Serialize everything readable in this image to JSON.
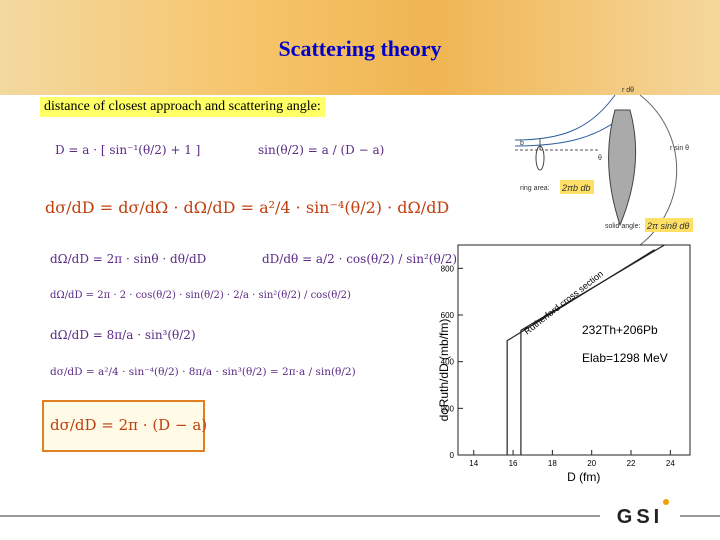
{
  "title": "Scattering theory",
  "subtitle": "distance of closest approach and scattering angle:",
  "formulas": [
    "D = a · [ sin⁻¹(θ/2) + 1 ]",
    "sin(θ/2) = a / (D − a)",
    "dσ/dD = dσ/dΩ · dΩ/dD = a²/4 · sin⁻⁴(θ/2) · dΩ/dD",
    "dΩ/dD = 2π · sinθ · dθ/dD",
    "dD/dθ = a/2 · cos(θ/2) / sin²(θ/2)",
    "dΩ/dD = 2π · 2 · cos(θ/2) · sin(θ/2) · 2/a · sin²(θ/2) / cos(θ/2)",
    "dΩ/dD = 8π/a · sin³(θ/2)",
    "dσ/dD = a²/4 · sin⁻⁴(θ/2) · 8π/a · sin³(θ/2) = 2π·a / sin(θ/2)"
  ],
  "boxed_formula": "dσ/dD = 2π · (D − a)",
  "diagram": {
    "labels": [
      "r dθ",
      "r sin θ",
      "b",
      "θ"
    ],
    "ring_area": {
      "label": "ring area:",
      "value": "2πb db"
    },
    "solid_angle": {
      "label": "solid angle:",
      "value": "2π sinθ dθ"
    }
  },
  "chart_data": {
    "type": "line",
    "xlabel": "D  (fm)",
    "ylabel": "dσRuth/dD  (mb/fm)",
    "annotations": [
      "Rutherford cross section",
      "232Th+206Pb",
      "Elab=1298 MeV"
    ],
    "xlim": [
      13.2,
      25
    ],
    "ylim": [
      0,
      900
    ],
    "xticks": [
      14,
      16,
      18,
      20,
      22,
      24
    ],
    "yticks": [
      0,
      200,
      400,
      600,
      800
    ],
    "series": [
      {
        "color": "#222222",
        "x": [
          15.7,
          15.7,
          23.2
        ],
        "values": [
          0,
          490,
          880
        ]
      },
      {
        "color": "#222222",
        "x": [
          16.4,
          16.4,
          23.7
        ],
        "values": [
          0,
          534,
          900
        ]
      }
    ]
  },
  "logo": "GSI"
}
